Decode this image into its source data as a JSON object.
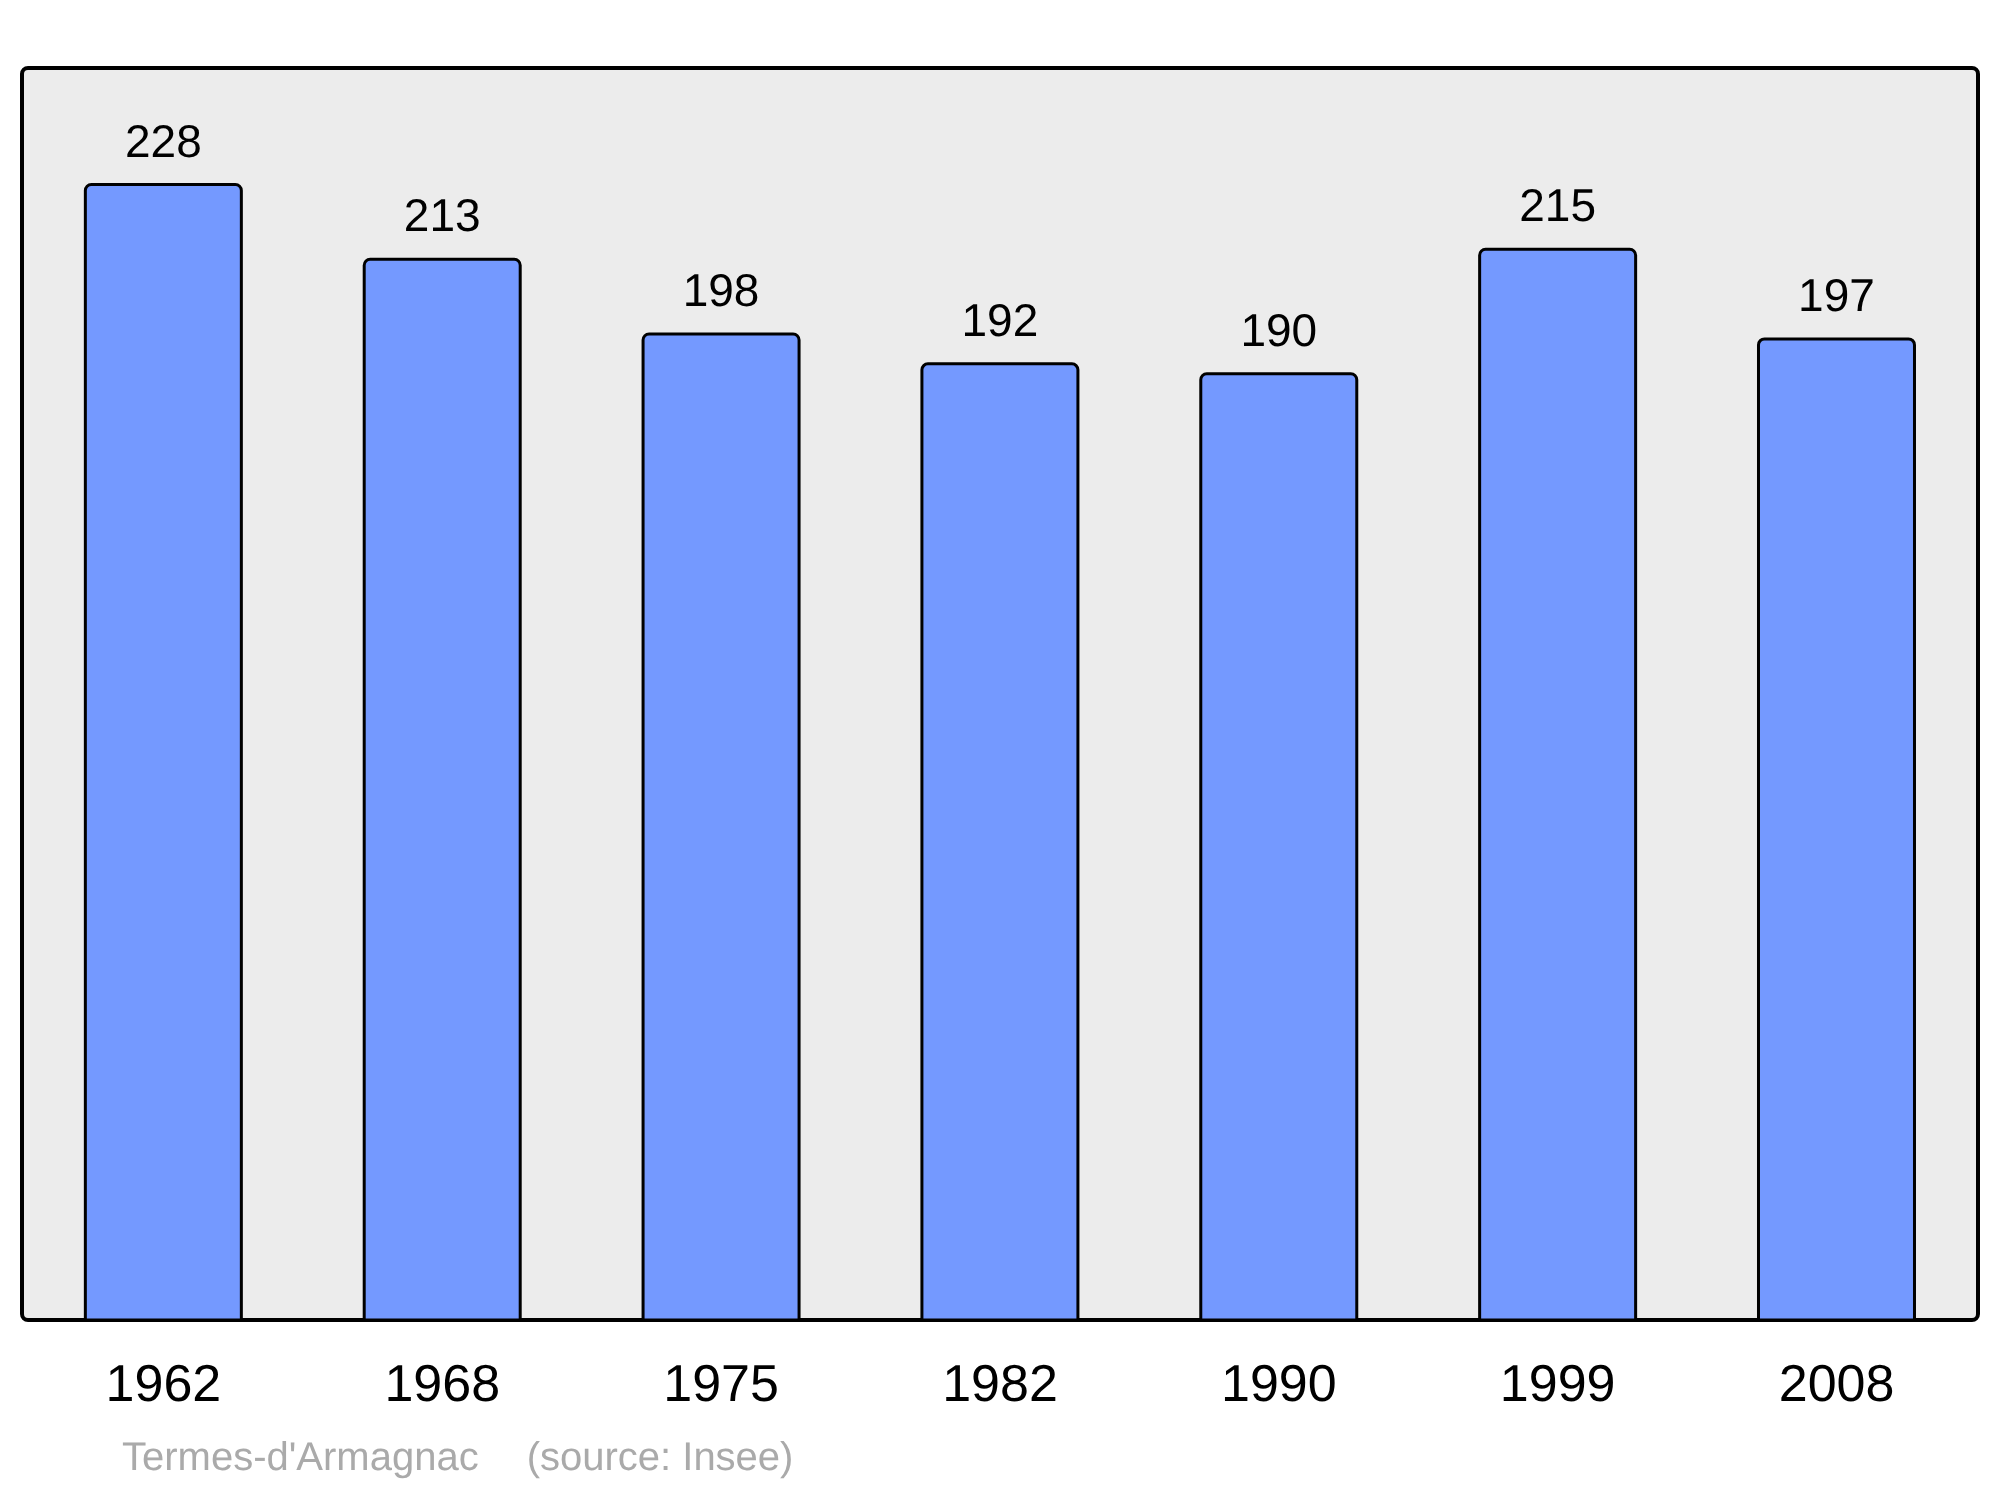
{
  "chart_data": {
    "type": "bar",
    "categories": [
      "1962",
      "1968",
      "1975",
      "1982",
      "1990",
      "1999",
      "2008"
    ],
    "values": [
      228,
      213,
      198,
      192,
      190,
      215,
      197
    ],
    "color": "#7499ff",
    "data_labels": true,
    "ylim": [
      0,
      251
    ],
    "grid": false,
    "annotations": [
      "Termes-d'Armagnac",
      "(source: Insee)"
    ]
  }
}
